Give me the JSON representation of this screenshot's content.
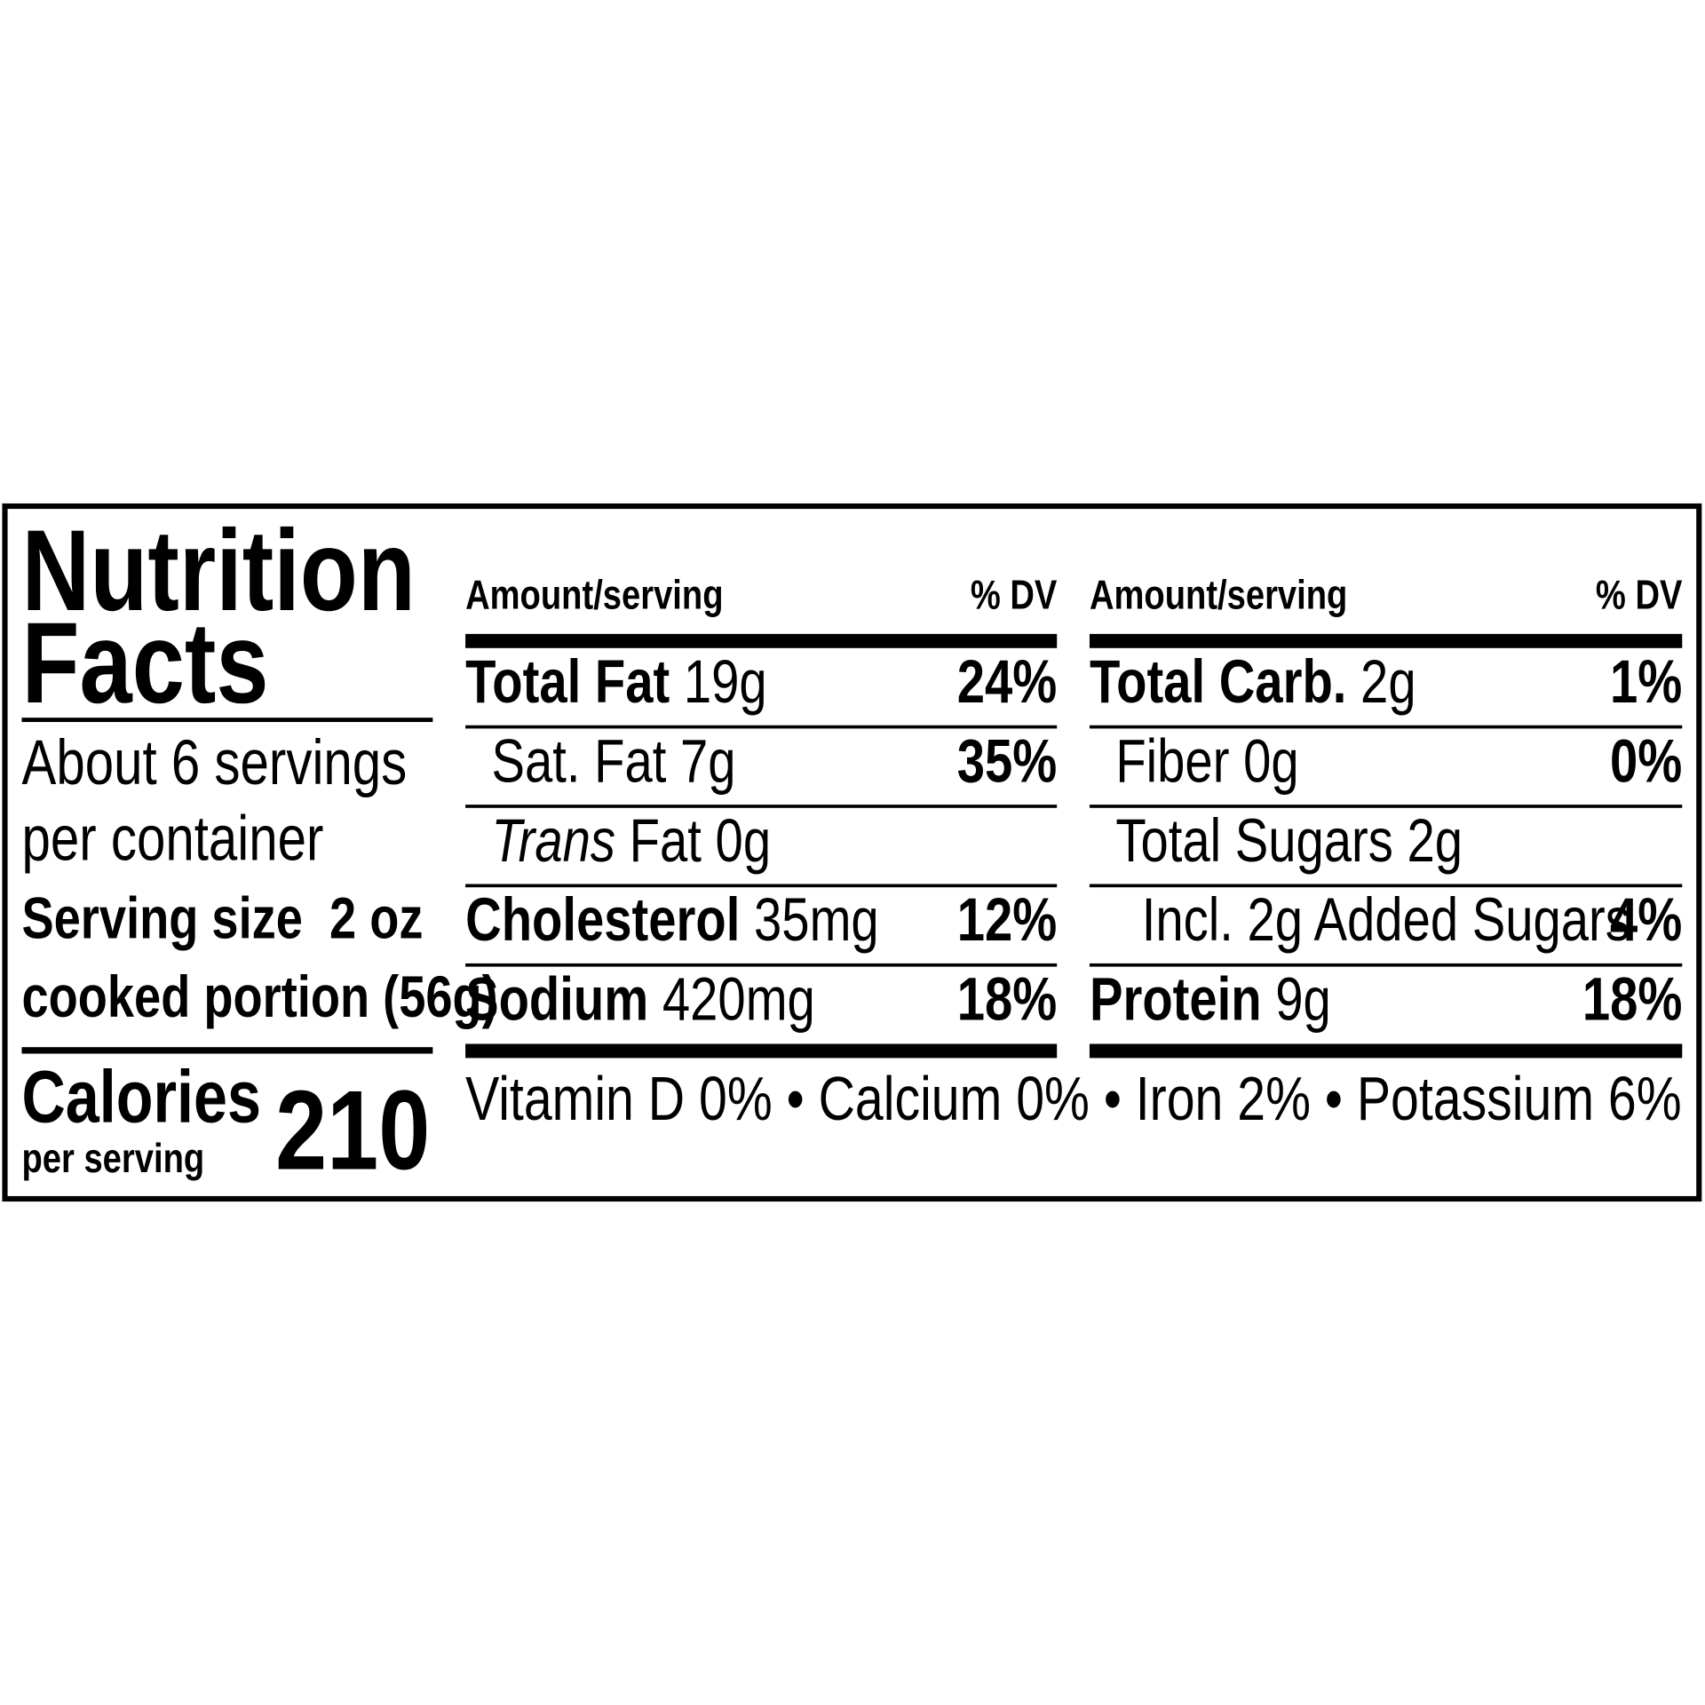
{
  "title": [
    "Nutrition",
    "Facts"
  ],
  "servings": [
    "About 6 servings",
    "per container"
  ],
  "serving_size": [
    "Serving size  2 oz",
    "cooked portion (56g)"
  ],
  "calories": {
    "label": "Calories",
    "sublabel": "per serving",
    "value": "210"
  },
  "columns": [
    {
      "header": {
        "amount": "Amount/serving",
        "dv": "% DV"
      },
      "rows": [
        {
          "name": [
            {
              "text": "Total Fat",
              "style": "bold"
            }
          ],
          "amount": "19g",
          "dv": "24%",
          "indent": 0
        },
        {
          "name": [
            {
              "text": "Sat. Fat",
              "style": "regular"
            }
          ],
          "amount": "7g",
          "dv": "35%",
          "indent": 1
        },
        {
          "name": [
            {
              "text": "Trans",
              "style": "italic"
            },
            {
              "text": "Fat",
              "style": "regular"
            }
          ],
          "amount": "0g",
          "indent": 1
        },
        {
          "name": [
            {
              "text": "Cholesterol",
              "style": "bold"
            }
          ],
          "amount": "35mg",
          "dv": "12%",
          "indent": 0
        },
        {
          "name": [
            {
              "text": "Sodium",
              "style": "bold"
            }
          ],
          "amount": "420mg",
          "dv": "18%",
          "indent": 0
        }
      ]
    },
    {
      "header": {
        "amount": "Amount/serving",
        "dv": "% DV"
      },
      "rows": [
        {
          "name": [
            {
              "text": "Total Carb.",
              "style": "bold"
            }
          ],
          "amount": "2g",
          "dv": "1%",
          "indent": 0
        },
        {
          "name": [
            {
              "text": "Fiber",
              "style": "regular"
            }
          ],
          "amount": "0g",
          "dv": "0%",
          "indent": 1
        },
        {
          "name": [
            {
              "text": "Total Sugars",
              "style": "regular"
            }
          ],
          "amount": "2g",
          "indent": 1
        },
        {
          "name": [
            {
              "text": "Incl. 2g Added Sugars",
              "style": "regular"
            }
          ],
          "dv": "4%",
          "indent": 2
        },
        {
          "name": [
            {
              "text": "Protein",
              "style": "bold"
            }
          ],
          "amount": "9g",
          "dv": "18%",
          "indent": 0
        }
      ]
    }
  ],
  "vitamins": "Vitamin D 0% • Calcium 0% • Iron 2% • Potassium 6%"
}
